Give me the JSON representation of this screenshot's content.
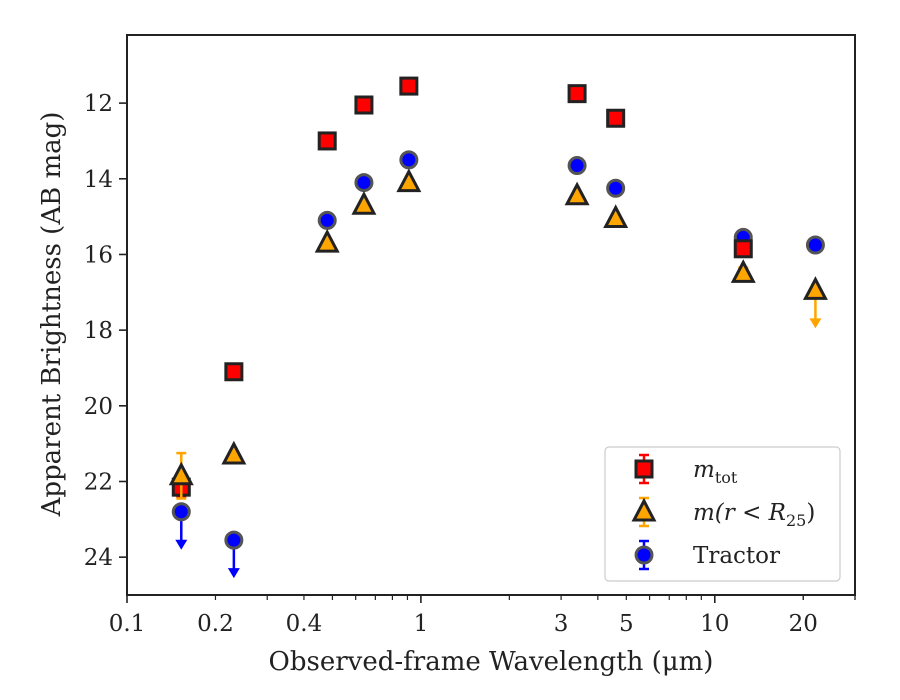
{
  "chart_data": {
    "type": "scatter",
    "title": "",
    "xlabel": "Observed-frame Wavelength (μm)",
    "ylabel": "Apparent Brightness (AB mag)",
    "xscale": "log",
    "xlim": [
      0.1,
      30
    ],
    "ylim": [
      25,
      10.2
    ],
    "y_inverted": true,
    "xticks": [
      0.1,
      0.2,
      0.4,
      1,
      3,
      5,
      10,
      20
    ],
    "xtick_labels": [
      "0.1",
      "0.2",
      "0.4",
      "1",
      "3",
      "5",
      "10",
      "20"
    ],
    "yticks": [
      12,
      14,
      16,
      18,
      20,
      22,
      24
    ],
    "ytick_labels": [
      "12",
      "14",
      "16",
      "18",
      "20",
      "22",
      "24"
    ],
    "grid": false,
    "legend_position": "lower-right",
    "series": [
      {
        "name": "m_tot",
        "legend_label": "m",
        "legend_sub": "tot",
        "marker": "square",
        "color": "#ff0000",
        "edge_color": "#222222",
        "points": [
          {
            "x": 0.153,
            "y": 22.15,
            "err": 0.25
          },
          {
            "x": 0.231,
            "y": 19.1
          },
          {
            "x": 0.48,
            "y": 13.0
          },
          {
            "x": 0.64,
            "y": 12.05
          },
          {
            "x": 0.91,
            "y": 11.55
          },
          {
            "x": 3.4,
            "y": 11.75
          },
          {
            "x": 4.6,
            "y": 12.4
          },
          {
            "x": 12.5,
            "y": 15.85,
            "err": 0.2
          }
        ]
      },
      {
        "name": "m(r < R25)",
        "legend_label": "m(r < R",
        "legend_sub": "25",
        "legend_suffix": ")",
        "marker": "triangle",
        "color": "#ffa500",
        "edge_color": "#222222",
        "points": [
          {
            "x": 0.153,
            "y": 21.85,
            "err": 0.6
          },
          {
            "x": 0.231,
            "y": 21.3
          },
          {
            "x": 0.48,
            "y": 15.7
          },
          {
            "x": 0.64,
            "y": 14.7
          },
          {
            "x": 0.91,
            "y": 14.1
          },
          {
            "x": 3.4,
            "y": 14.45
          },
          {
            "x": 4.6,
            "y": 15.05
          },
          {
            "x": 12.5,
            "y": 16.5,
            "err": 0.15
          },
          {
            "x": 22,
            "y": 16.95,
            "upper_limit": true,
            "arrow_to": 17.9
          }
        ]
      },
      {
        "name": "Tractor",
        "legend_label": "Tractor",
        "marker": "circle",
        "color": "#0000ff",
        "edge_color": "#555555",
        "points": [
          {
            "x": 0.153,
            "y": 22.8,
            "upper_limit": true,
            "arrow_to": 23.75
          },
          {
            "x": 0.231,
            "y": 23.55,
            "upper_limit": true,
            "arrow_to": 24.5
          },
          {
            "x": 0.48,
            "y": 15.1
          },
          {
            "x": 0.64,
            "y": 14.1
          },
          {
            "x": 0.91,
            "y": 13.5
          },
          {
            "x": 3.4,
            "y": 13.65
          },
          {
            "x": 4.6,
            "y": 14.25
          },
          {
            "x": 12.5,
            "y": 15.55
          },
          {
            "x": 22,
            "y": 15.75
          }
        ]
      }
    ]
  }
}
